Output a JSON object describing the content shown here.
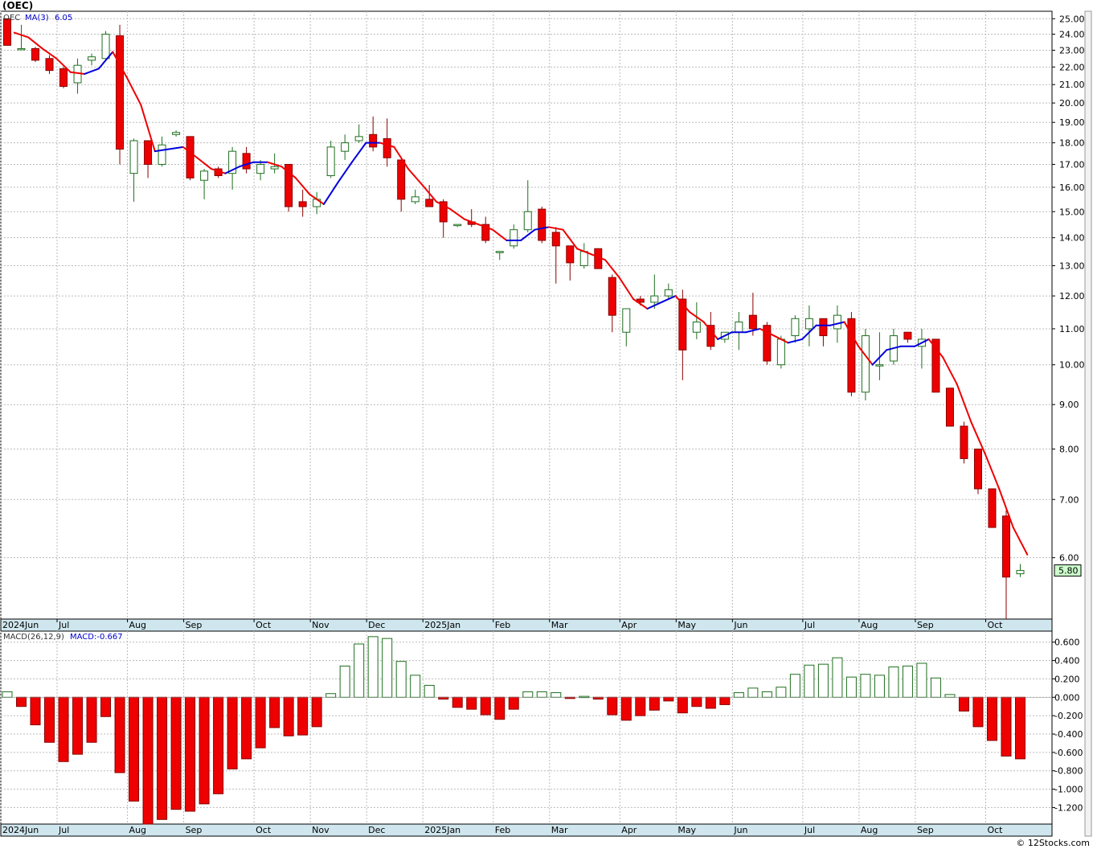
{
  "window": {
    "title": "(OEC)",
    "credit": "© 12Stocks.com"
  },
  "colors": {
    "up_fill": "#ffffff",
    "up_stroke": "#1f6f1f",
    "down_fill": "#ee0000",
    "down_stroke": "#880000",
    "ma_up": "#0000dd",
    "ma_down": "#ee0000",
    "grid": "#bbbbbb",
    "axis_band": "#cfe6ee",
    "price_tag": "#ccffcc"
  },
  "chart_data": [
    {
      "type": "candlestick",
      "scale": "log",
      "legend": {
        "symbol": "OEC",
        "ma_label": "MA(3)",
        "ma_value": "6.05"
      },
      "ylim": [
        5.1,
        25.5
      ],
      "y_ticks": [
        "25.00",
        "24.00",
        "23.00",
        "22.00",
        "21.00",
        "20.00",
        "19.00",
        "18.00",
        "17.00",
        "16.00",
        "15.00",
        "14.00",
        "13.00",
        "12.00",
        "11.00",
        "10.00",
        "9.00",
        "8.00",
        "7.00",
        "6.00"
      ],
      "y_tick_values": [
        25,
        24,
        23,
        22,
        21,
        20,
        19,
        18,
        17,
        16,
        15,
        14,
        13,
        12,
        11,
        10,
        9,
        8,
        7,
        6
      ],
      "x_labels": [
        "2024Jun",
        "Jul",
        "Aug",
        "Sep",
        "Oct",
        "Nov",
        "Dec",
        "2025Jan",
        "Feb",
        "Mar",
        "Apr",
        "May",
        "Jun",
        "Jul",
        "Aug",
        "Sep",
        "Oct"
      ],
      "x_label_weeks": [
        0,
        4,
        9,
        13,
        18,
        22,
        26,
        30,
        35,
        39,
        44,
        48,
        52,
        57,
        61,
        65,
        70
      ],
      "last_price": "5.80",
      "weeks": [
        {
          "o": 25.0,
          "h": 25.0,
          "l": 23.3,
          "c": 23.3
        },
        {
          "o": 23.1,
          "h": 24.6,
          "l": 23.0,
          "c": 23.1
        },
        {
          "o": 23.1,
          "h": 23.2,
          "l": 22.3,
          "c": 22.4
        },
        {
          "o": 22.5,
          "h": 22.7,
          "l": 21.6,
          "c": 21.8
        },
        {
          "o": 21.9,
          "h": 22.0,
          "l": 20.8,
          "c": 20.9
        },
        {
          "o": 21.1,
          "h": 22.5,
          "l": 20.5,
          "c": 22.1
        },
        {
          "o": 22.4,
          "h": 22.8,
          "l": 22.1,
          "c": 22.6
        },
        {
          "o": 22.5,
          "h": 24.2,
          "l": 22.4,
          "c": 24.0
        },
        {
          "o": 23.9,
          "h": 24.6,
          "l": 17.0,
          "c": 17.7
        },
        {
          "o": 16.6,
          "h": 18.2,
          "l": 15.4,
          "c": 18.1
        },
        {
          "o": 18.1,
          "h": 18.1,
          "l": 16.4,
          "c": 17.0
        },
        {
          "o": 17.0,
          "h": 18.3,
          "l": 16.9,
          "c": 17.9
        },
        {
          "o": 18.4,
          "h": 18.6,
          "l": 18.3,
          "c": 18.5
        },
        {
          "o": 18.3,
          "h": 18.3,
          "l": 16.3,
          "c": 16.4
        },
        {
          "o": 16.3,
          "h": 16.8,
          "l": 15.5,
          "c": 16.7
        },
        {
          "o": 16.8,
          "h": 16.9,
          "l": 16.4,
          "c": 16.5
        },
        {
          "o": 16.6,
          "h": 17.8,
          "l": 15.9,
          "c": 17.6
        },
        {
          "o": 17.5,
          "h": 17.8,
          "l": 16.6,
          "c": 16.8
        },
        {
          "o": 16.6,
          "h": 17.2,
          "l": 16.3,
          "c": 17.0
        },
        {
          "o": 16.8,
          "h": 17.5,
          "l": 16.6,
          "c": 16.9
        },
        {
          "o": 17.0,
          "h": 17.0,
          "l": 15.0,
          "c": 15.2
        },
        {
          "o": 15.4,
          "h": 15.9,
          "l": 14.8,
          "c": 15.2
        },
        {
          "o": 15.2,
          "h": 15.8,
          "l": 14.9,
          "c": 15.5
        },
        {
          "o": 16.5,
          "h": 18.1,
          "l": 16.4,
          "c": 17.8
        },
        {
          "o": 17.6,
          "h": 18.4,
          "l": 17.2,
          "c": 18.0
        },
        {
          "o": 18.1,
          "h": 18.9,
          "l": 18.0,
          "c": 18.3
        },
        {
          "o": 18.4,
          "h": 19.3,
          "l": 17.6,
          "c": 17.8
        },
        {
          "o": 18.2,
          "h": 19.2,
          "l": 16.9,
          "c": 17.3
        },
        {
          "o": 17.2,
          "h": 17.2,
          "l": 15.0,
          "c": 15.5
        },
        {
          "o": 15.4,
          "h": 15.9,
          "l": 15.3,
          "c": 15.6
        },
        {
          "o": 15.5,
          "h": 16.1,
          "l": 15.2,
          "c": 15.2
        },
        {
          "o": 15.4,
          "h": 15.5,
          "l": 14.0,
          "c": 14.6
        },
        {
          "o": 14.5,
          "h": 14.5,
          "l": 14.4,
          "c": 14.5
        },
        {
          "o": 14.6,
          "h": 15.1,
          "l": 14.4,
          "c": 14.5
        },
        {
          "o": 14.5,
          "h": 14.8,
          "l": 13.8,
          "c": 13.9
        },
        {
          "o": 13.5,
          "h": 13.5,
          "l": 13.2,
          "c": 13.5
        },
        {
          "o": 13.7,
          "h": 14.5,
          "l": 13.6,
          "c": 14.3
        },
        {
          "o": 14.3,
          "h": 16.3,
          "l": 14.2,
          "c": 15.0
        },
        {
          "o": 15.1,
          "h": 15.2,
          "l": 13.8,
          "c": 13.9
        },
        {
          "o": 14.2,
          "h": 14.4,
          "l": 12.4,
          "c": 13.7
        },
        {
          "o": 13.7,
          "h": 13.7,
          "l": 12.5,
          "c": 13.1
        },
        {
          "o": 13.0,
          "h": 13.8,
          "l": 12.9,
          "c": 13.5
        },
        {
          "o": 13.6,
          "h": 13.6,
          "l": 12.9,
          "c": 12.9
        },
        {
          "o": 12.6,
          "h": 12.7,
          "l": 10.9,
          "c": 11.4
        },
        {
          "o": 10.9,
          "h": 11.6,
          "l": 10.5,
          "c": 11.6
        },
        {
          "o": 11.9,
          "h": 12.0,
          "l": 11.7,
          "c": 11.8
        },
        {
          "o": 11.8,
          "h": 12.7,
          "l": 11.6,
          "c": 12.0
        },
        {
          "o": 12.0,
          "h": 12.4,
          "l": 11.9,
          "c": 12.2
        },
        {
          "o": 11.9,
          "h": 12.2,
          "l": 9.6,
          "c": 10.4
        },
        {
          "o": 10.9,
          "h": 11.8,
          "l": 10.7,
          "c": 11.2
        },
        {
          "o": 11.1,
          "h": 11.5,
          "l": 10.4,
          "c": 10.5
        },
        {
          "o": 10.7,
          "h": 10.9,
          "l": 10.6,
          "c": 10.9
        },
        {
          "o": 10.9,
          "h": 11.5,
          "l": 10.4,
          "c": 11.2
        },
        {
          "o": 11.4,
          "h": 12.1,
          "l": 10.8,
          "c": 11.0
        },
        {
          "o": 11.1,
          "h": 11.2,
          "l": 10.0,
          "c": 10.1
        },
        {
          "o": 10.0,
          "h": 10.8,
          "l": 9.9,
          "c": 10.7
        },
        {
          "o": 10.8,
          "h": 11.4,
          "l": 10.6,
          "c": 11.3
        },
        {
          "o": 11.0,
          "h": 11.7,
          "l": 10.5,
          "c": 11.3
        },
        {
          "o": 11.3,
          "h": 11.3,
          "l": 10.5,
          "c": 10.8
        },
        {
          "o": 11.0,
          "h": 11.7,
          "l": 10.6,
          "c": 11.4
        },
        {
          "o": 11.3,
          "h": 11.5,
          "l": 9.2,
          "c": 9.3
        },
        {
          "o": 9.3,
          "h": 11.0,
          "l": 9.1,
          "c": 10.8
        },
        {
          "o": 10.0,
          "h": 10.9,
          "l": 9.6,
          "c": 10.0
        },
        {
          "o": 10.1,
          "h": 11.0,
          "l": 10.0,
          "c": 10.8
        },
        {
          "o": 10.9,
          "h": 10.9,
          "l": 10.6,
          "c": 10.7
        },
        {
          "o": 10.5,
          "h": 11.0,
          "l": 9.9,
          "c": 10.7
        },
        {
          "o": 10.7,
          "h": 10.7,
          "l": 9.3,
          "c": 9.3
        },
        {
          "o": 9.4,
          "h": 9.4,
          "l": 8.5,
          "c": 8.5
        },
        {
          "o": 8.5,
          "h": 8.6,
          "l": 7.7,
          "c": 7.8
        },
        {
          "o": 8.0,
          "h": 8.0,
          "l": 7.1,
          "c": 7.2
        },
        {
          "o": 7.2,
          "h": 7.2,
          "l": 6.5,
          "c": 6.5
        },
        {
          "o": 6.7,
          "h": 6.8,
          "l": 5.1,
          "c": 5.7
        },
        {
          "o": 5.75,
          "h": 5.9,
          "l": 5.7,
          "c": 5.8
        }
      ],
      "ma": [
        24.1,
        23.8,
        23.1,
        22.5,
        21.7,
        21.6,
        21.9,
        22.9,
        21.4,
        19.9,
        17.6,
        17.7,
        17.8,
        17.3,
        16.8,
        16.6,
        16.9,
        17.1,
        17.1,
        16.9,
        16.4,
        15.7,
        15.3,
        16.2,
        17.1,
        18.0,
        18.0,
        17.8,
        16.8,
        16.1,
        15.4,
        15.1,
        14.7,
        14.5,
        14.3,
        13.9,
        13.9,
        14.3,
        14.4,
        14.3,
        13.6,
        13.4,
        13.2,
        12.6,
        11.9,
        11.6,
        11.8,
        12.0,
        11.5,
        11.2,
        10.7,
        10.9,
        10.9,
        11.0,
        10.8,
        10.6,
        10.7,
        11.1,
        11.1,
        11.2,
        10.5,
        10.0,
        10.4,
        10.5,
        10.5,
        10.7,
        10.2,
        9.5,
        8.6,
        7.9,
        7.2,
        6.5,
        6.05
      ],
      "ma_color_by_trend": true
    },
    {
      "type": "bar",
      "legend": {
        "label": "MACD(26,12,9)",
        "value_label": "MACD:-0.667"
      },
      "ylim": [
        -1.38,
        0.72
      ],
      "y_ticks": [
        "0.600",
        "0.400",
        "0.200",
        "0.000",
        "-0.200",
        "-0.400",
        "-0.600",
        "-0.800",
        "-1.000",
        "-1.200"
      ],
      "y_tick_values": [
        0.6,
        0.4,
        0.2,
        0.0,
        -0.2,
        -0.4,
        -0.6,
        -0.8,
        -1.0,
        -1.2
      ],
      "x_labels": [
        "2024Jun",
        "Jul",
        "Aug",
        "Sep",
        "Oct",
        "Nov",
        "Dec",
        "2025Jan",
        "Feb",
        "Mar",
        "Apr",
        "May",
        "Jun",
        "Jul",
        "Aug",
        "Sep",
        "Oct"
      ],
      "values": [
        0.06,
        -0.1,
        -0.3,
        -0.49,
        -0.7,
        -0.62,
        -0.49,
        -0.21,
        -0.82,
        -1.13,
        -1.38,
        -1.33,
        -1.22,
        -1.24,
        -1.16,
        -1.05,
        -0.78,
        -0.67,
        -0.55,
        -0.33,
        -0.42,
        -0.41,
        -0.32,
        0.04,
        0.34,
        0.58,
        0.66,
        0.64,
        0.39,
        0.24,
        0.13,
        -0.02,
        -0.11,
        -0.13,
        -0.19,
        -0.24,
        -0.13,
        0.06,
        0.06,
        0.05,
        -0.01,
        0.01,
        -0.02,
        -0.19,
        -0.25,
        -0.2,
        -0.14,
        -0.04,
        -0.17,
        -0.1,
        -0.12,
        -0.08,
        0.05,
        0.1,
        0.06,
        0.11,
        0.25,
        0.35,
        0.36,
        0.43,
        0.22,
        0.25,
        0.24,
        0.33,
        0.34,
        0.37,
        0.21,
        0.03,
        -0.15,
        -0.32,
        -0.47,
        -0.64,
        -0.67
      ]
    }
  ]
}
